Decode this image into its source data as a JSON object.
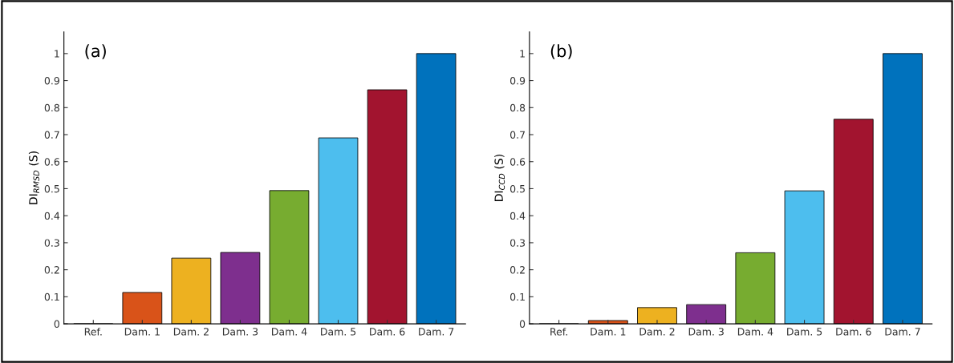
{
  "chart_data": [
    {
      "type": "bar",
      "ylabel": "DI$_{RMSD}$ (S)",
      "annotations": [
        "(a)"
      ],
      "categories": [
        "Ref.",
        "Dam. 1",
        "Dam. 2",
        "Dam. 3",
        "Dam. 4",
        "Dam. 5",
        "Dam. 6",
        "Dam. 7"
      ],
      "values": [
        0,
        0.116,
        0.243,
        0.264,
        0.493,
        0.688,
        0.866,
        1.0
      ],
      "colors": [
        "#0072bd",
        "#d95319",
        "#edb120",
        "#7e2f8e",
        "#77ac30",
        "#4dbeee",
        "#a2142f",
        "#0072bd"
      ],
      "ylim": [
        0,
        1.08
      ],
      "yticks": [
        0,
        0.1,
        0.2,
        0.3,
        0.4,
        0.5,
        0.6,
        0.7,
        0.8,
        0.9,
        1
      ],
      "grid": false
    },
    {
      "type": "bar",
      "ylabel": "DI$_{CCD}$ (S)",
      "annotations": [
        "(b)"
      ],
      "categories": [
        "Ref.",
        "Dam. 1",
        "Dam. 2",
        "Dam. 3",
        "Dam. 4",
        "Dam. 5",
        "Dam. 6",
        "Dam. 7"
      ],
      "values": [
        0,
        0.012,
        0.06,
        0.071,
        0.263,
        0.492,
        0.757,
        1.0
      ],
      "colors": [
        "#0072bd",
        "#d95319",
        "#edb120",
        "#7e2f8e",
        "#77ac30",
        "#4dbeee",
        "#a2142f",
        "#0072bd"
      ],
      "ylim": [
        0,
        1.08
      ],
      "yticks": [
        0,
        0.1,
        0.2,
        0.3,
        0.4,
        0.5,
        0.6,
        0.7,
        0.8,
        0.9,
        1
      ],
      "grid": false
    }
  ]
}
